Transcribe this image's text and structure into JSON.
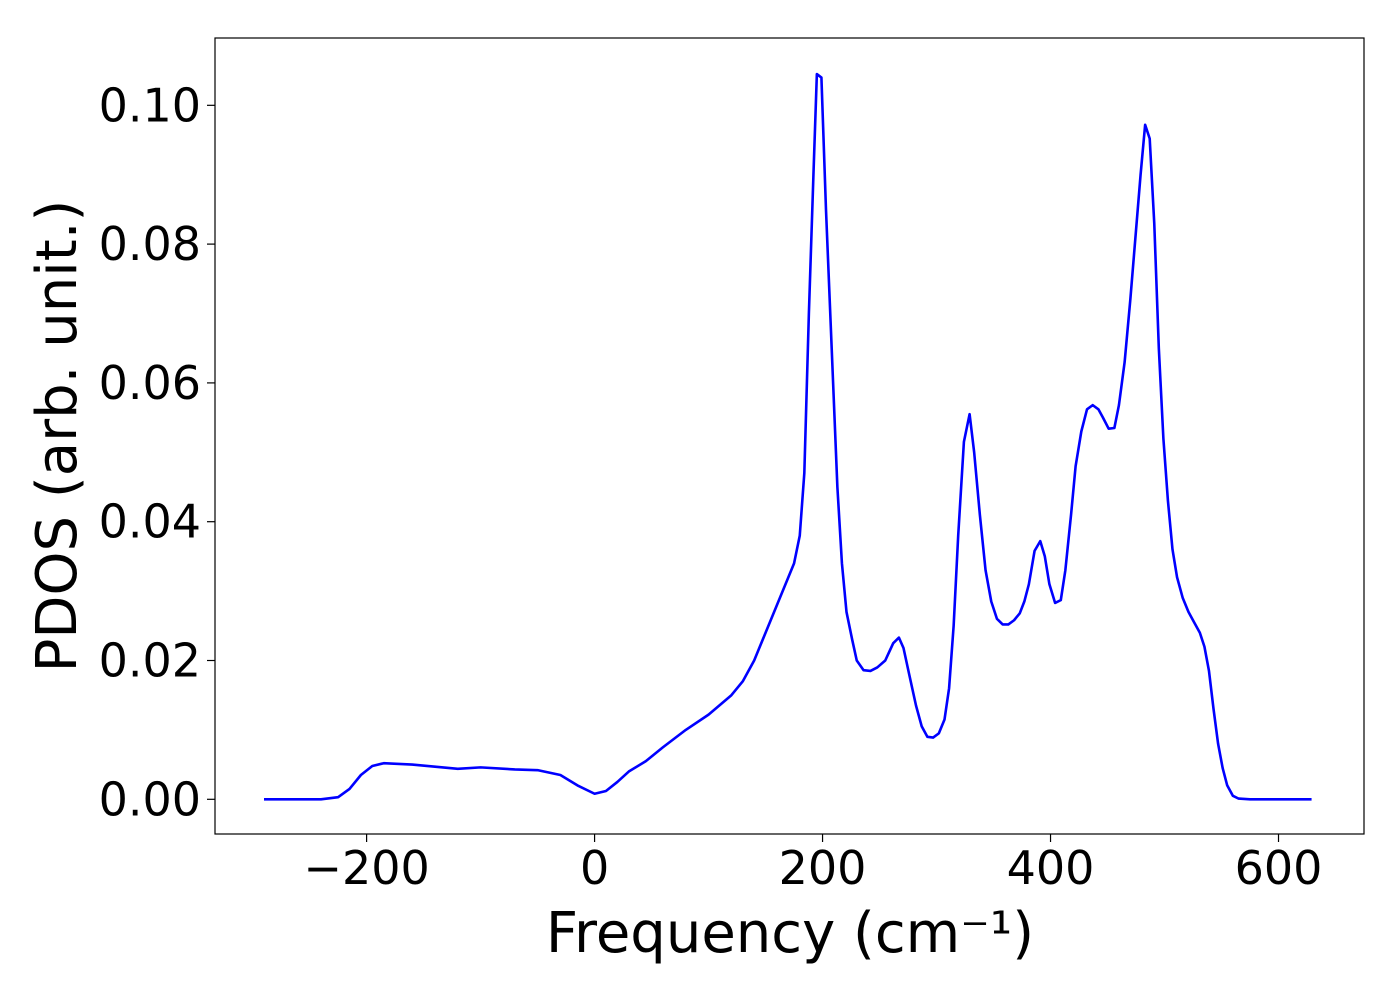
{
  "chart_data": {
    "type": "line",
    "xlabel": "Frequency (cm⁻¹)",
    "ylabel": "PDOS (arb. unit.)",
    "xlim": [
      -333,
      675
    ],
    "ylim": [
      -0.005,
      0.1097
    ],
    "xticks": [
      {
        "value": -200,
        "label": "−200"
      },
      0,
      200,
      400,
      600
    ],
    "yticks": [
      {
        "value": 0,
        "label": "0.00"
      },
      {
        "value": 0.02,
        "label": "0.02"
      },
      {
        "value": 0.04,
        "label": "0.04"
      },
      {
        "value": 0.06,
        "label": "0.06"
      },
      {
        "value": 0.08,
        "label": "0.08"
      },
      {
        "value": 0.1,
        "label": "0.10"
      }
    ],
    "grid": false,
    "series": [
      {
        "color": "#0000ff",
        "x": [
          -290,
          -240,
          -225,
          -215,
          -205,
          -195,
          -185,
          -160,
          -120,
          -100,
          -70,
          -50,
          -30,
          -15,
          0,
          10,
          20,
          30,
          45,
          60,
          80,
          100,
          120,
          130,
          140,
          150,
          160,
          170,
          175,
          180,
          184,
          188,
          192,
          195,
          199,
          203,
          208,
          213,
          217,
          221,
          226,
          230,
          236,
          242,
          248,
          255,
          262,
          267,
          271,
          276,
          282,
          287,
          292,
          297,
          302,
          307,
          311,
          315,
          319,
          324,
          329,
          333,
          338,
          343,
          348,
          353,
          358,
          363,
          368,
          373,
          377,
          381,
          386,
          391,
          395,
          399,
          404,
          409,
          413,
          418,
          422,
          427,
          432,
          437,
          442,
          446,
          451,
          456,
          460,
          465,
          470,
          475,
          479,
          483,
          487,
          491,
          495,
          499,
          503,
          507,
          511,
          516,
          521,
          526,
          531,
          535,
          539,
          543,
          547,
          551,
          555,
          560,
          565,
          575,
          600,
          629
        ],
        "values": [
          0,
          0,
          0.0003,
          0.0015,
          0.0035,
          0.0048,
          0.0052,
          0.005,
          0.0044,
          0.0046,
          0.0043,
          0.0042,
          0.0035,
          0.002,
          0.0008,
          0.0012,
          0.0025,
          0.004,
          0.0055,
          0.0075,
          0.01,
          0.0122,
          0.015,
          0.017,
          0.02,
          0.024,
          0.028,
          0.032,
          0.034,
          0.038,
          0.047,
          0.07,
          0.09,
          0.1045,
          0.104,
          0.085,
          0.065,
          0.045,
          0.034,
          0.027,
          0.023,
          0.02,
          0.0186,
          0.0185,
          0.019,
          0.02,
          0.0225,
          0.0233,
          0.0218,
          0.018,
          0.0135,
          0.0105,
          0.009,
          0.0089,
          0.0095,
          0.0115,
          0.016,
          0.025,
          0.038,
          0.0515,
          0.0555,
          0.05,
          0.041,
          0.033,
          0.0285,
          0.026,
          0.0252,
          0.0252,
          0.0258,
          0.0268,
          0.0285,
          0.031,
          0.0358,
          0.0372,
          0.035,
          0.031,
          0.0283,
          0.0287,
          0.033,
          0.041,
          0.048,
          0.053,
          0.0562,
          0.0568,
          0.0562,
          0.055,
          0.0534,
          0.0535,
          0.0568,
          0.063,
          0.072,
          0.082,
          0.09,
          0.0972,
          0.0952,
          0.083,
          0.065,
          0.052,
          0.043,
          0.036,
          0.032,
          0.029,
          0.027,
          0.0255,
          0.024,
          0.022,
          0.0185,
          0.013,
          0.008,
          0.0045,
          0.002,
          0.0005,
          0.0001,
          0,
          0,
          0
        ]
      }
    ]
  }
}
